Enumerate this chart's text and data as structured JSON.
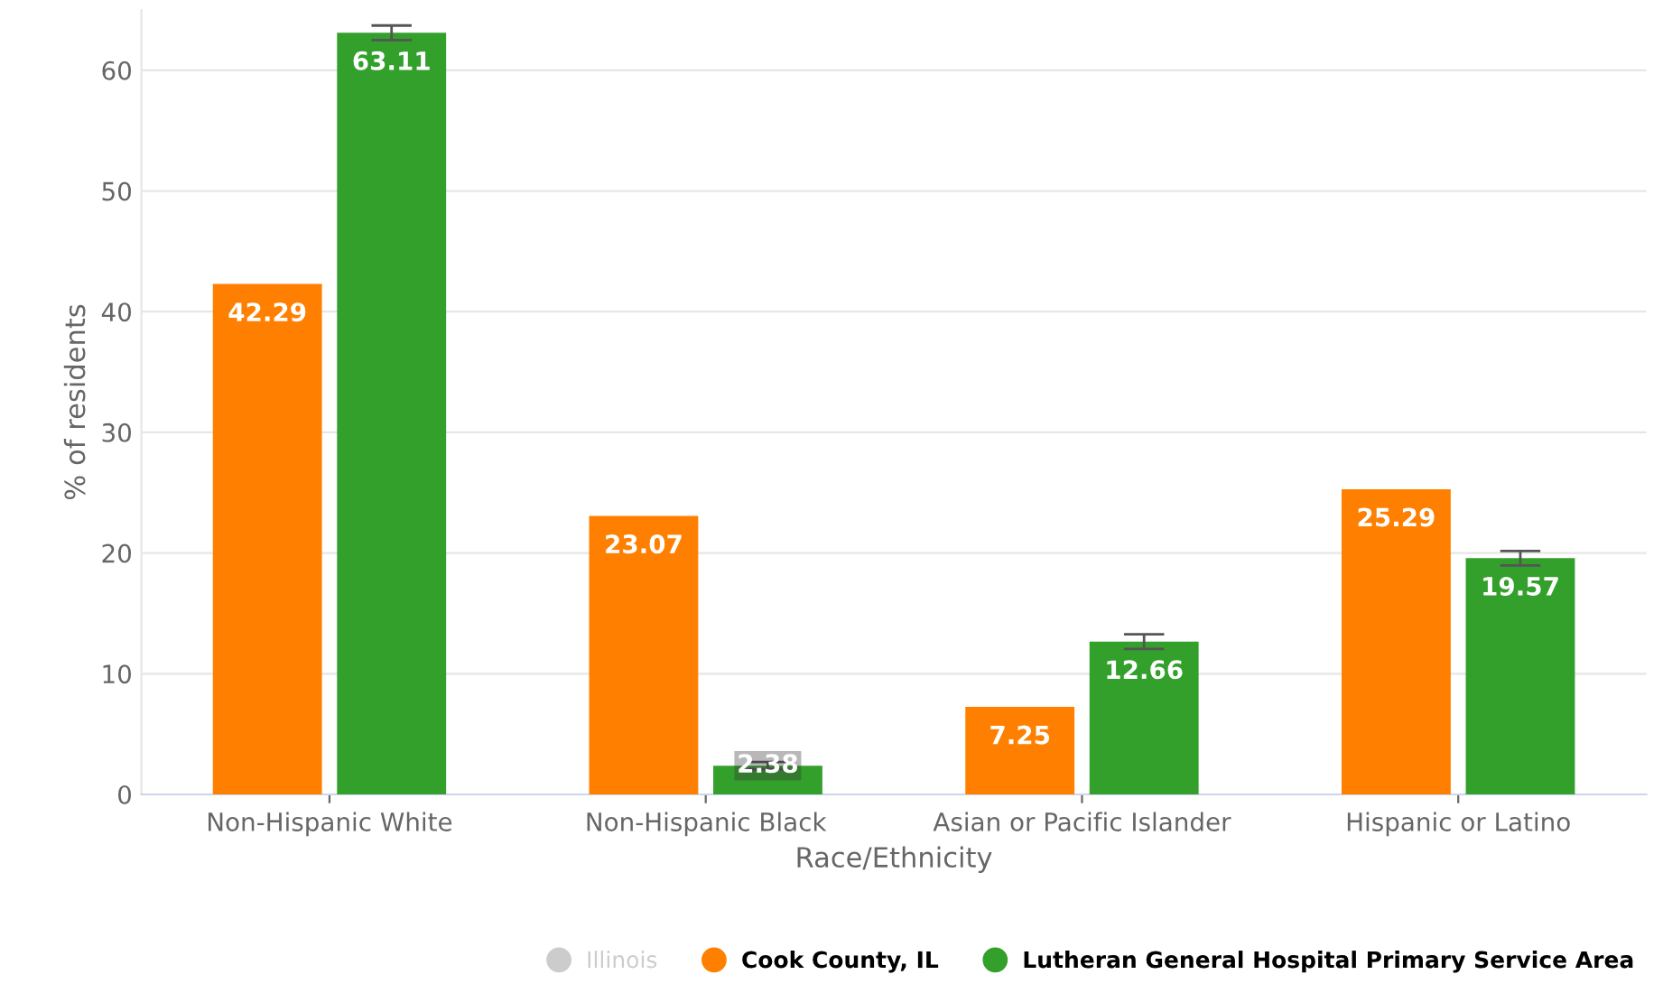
{
  "chart_data": {
    "type": "bar",
    "xlabel": "Race/Ethnicity",
    "ylabel": "% of residents",
    "categories": [
      "Non-Hispanic White",
      "Non-Hispanic Black",
      "Asian or Pacific Islander",
      "Hispanic or Latino"
    ],
    "series": [
      {
        "name": "Illinois",
        "color": "#cccccc",
        "values": [
          null,
          null,
          null,
          null
        ]
      },
      {
        "name": "Cook County, IL",
        "color": "#ff8000",
        "values": [
          42.29,
          23.07,
          7.25,
          25.29
        ]
      },
      {
        "name": "Lutheran General Hospital Primary Service Area",
        "color": "#33a02c",
        "values": [
          63.11,
          2.38,
          12.66,
          19.57
        ],
        "errors": [
          0.6,
          0.3,
          0.6,
          0.6
        ]
      }
    ],
    "ylim": [
      0,
      65
    ],
    "yticks": [
      0,
      10,
      20,
      30,
      40,
      50,
      60
    ],
    "grid": "y",
    "data_labels": true,
    "legend": "bottom right"
  }
}
